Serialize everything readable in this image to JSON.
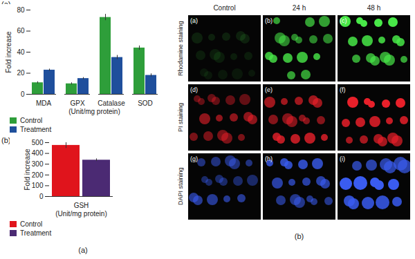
{
  "chart_data": [
    {
      "type": "bar",
      "title": "(a)",
      "y_label": "Fold increase",
      "x_label": "(Unit/mg protein)",
      "categories": [
        "MDA",
        "GPX",
        "Catalase",
        "SOD"
      ],
      "series": [
        {
          "name": "Control",
          "color": "#2e9e3a",
          "values": [
            11,
            10,
            73,
            44
          ],
          "errors": [
            1,
            1,
            3,
            2
          ]
        },
        {
          "name": "Treatment",
          "color": "#1f4f9c",
          "values": [
            23,
            15,
            35,
            18
          ],
          "errors": [
            1,
            1,
            2,
            1.5
          ]
        }
      ],
      "ylim": [
        0,
        80
      ],
      "yticks": [
        0,
        20,
        40,
        60,
        80
      ],
      "grid": false,
      "legend": "bottom"
    },
    {
      "type": "bar",
      "title": "(b)",
      "y_label": "Fold increase",
      "x_label": "(Unit/mg protein)",
      "categories": [
        "GSH"
      ],
      "series": [
        {
          "name": "Control",
          "color": "#e0141c",
          "values": [
            475
          ],
          "errors": [
            28
          ]
        },
        {
          "name": "Treatment",
          "color": "#4b2a73",
          "values": [
            338
          ],
          "errors": [
            12
          ]
        }
      ],
      "ylim": [
        0,
        500
      ],
      "yticks": [
        0,
        100,
        200,
        300,
        400,
        500
      ],
      "grid": false,
      "legend": "bottom"
    }
  ],
  "captions": {
    "charts": "(a)",
    "micrographs": "(b)"
  },
  "micrographs": {
    "columns": [
      "Control",
      "24 h",
      "48 h"
    ],
    "rows": [
      {
        "label": "Rhodamine staining",
        "color": "#48e848",
        "panels": [
          "(a)",
          "(b)",
          "(c)"
        ]
      },
      {
        "label": "PI staining",
        "color": "#e8202a",
        "panels": [
          "(d)",
          "(e)",
          "(f)"
        ]
      },
      {
        "label": "DAPI staining",
        "color": "#3a5cf0",
        "panels": [
          "(g)",
          "(h)",
          "(i)"
        ]
      }
    ]
  }
}
